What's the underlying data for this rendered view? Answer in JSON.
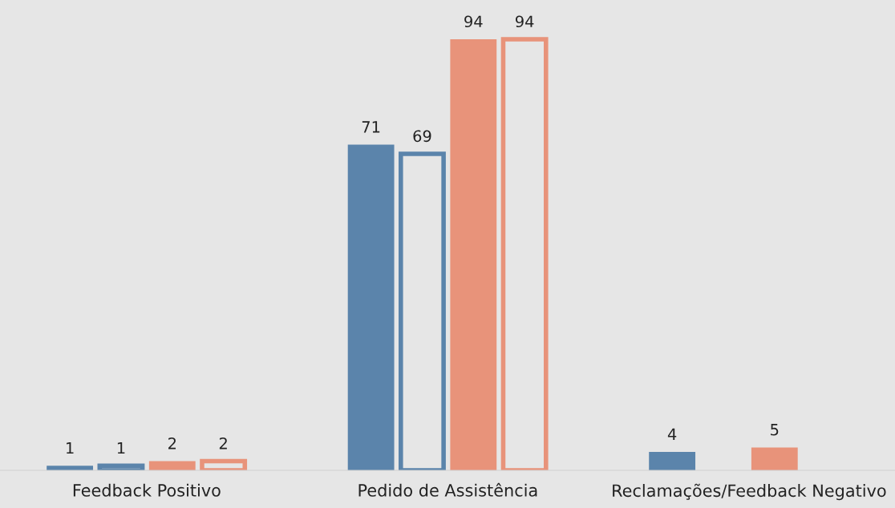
{
  "chart_data": {
    "type": "bar",
    "categories": [
      "Feedback Positivo",
      "Pedido de Assistência",
      "Reclamações/Feedback Negativo"
    ],
    "series": [
      {
        "color": "#5b84ab",
        "values": [
          1,
          71,
          4
        ]
      },
      {
        "color": "#5b84ab",
        "line_style": "solid",
        "values": [
          1,
          69,
          null
        ]
      },
      {
        "color": "#e8937a",
        "values": [
          2,
          94,
          5
        ]
      },
      {
        "color": "#e8937a",
        "line_style": "solid",
        "values": [
          2,
          94,
          null
        ]
      }
    ],
    "data_labels": true,
    "grid": false,
    "legend": false
  }
}
